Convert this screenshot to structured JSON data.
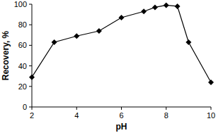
{
  "chart_data": {
    "type": "line",
    "x_label": "pH",
    "y_label": "Recovery, %",
    "x": [
      2,
      3,
      4,
      5,
      6,
      7,
      7.5,
      8,
      8.5,
      9,
      10
    ],
    "series": [
      {
        "name": null,
        "color": "#000000",
        "marker": "diamond",
        "line_style": "solid",
        "values": [
          29,
          63,
          69,
          74,
          87,
          93,
          97,
          99,
          98,
          63,
          24
        ]
      }
    ],
    "xlim": [
      2,
      10
    ],
    "xticks": [
      2,
      4,
      6,
      8,
      10
    ],
    "ylim": [
      0,
      100
    ],
    "yticks": [
      0,
      20,
      40,
      60,
      80,
      100
    ],
    "grid": false
  }
}
